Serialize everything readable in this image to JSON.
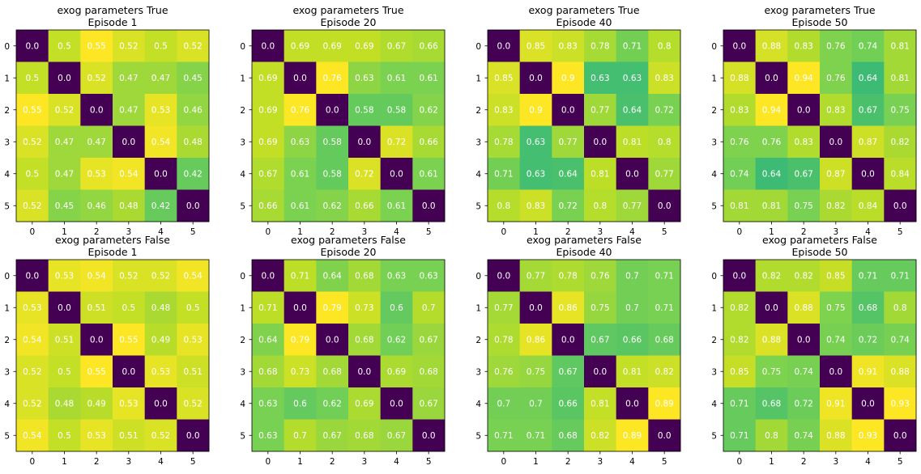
{
  "chart_data": [
    {
      "type": "heatmap",
      "title": "exog parameters True\nEpisode 1",
      "x": [
        "0",
        "1",
        "2",
        "3",
        "4",
        "5"
      ],
      "y": [
        "0",
        "1",
        "2",
        "3",
        "4",
        "5"
      ],
      "values": [
        [
          0.0,
          0.5,
          0.55,
          0.52,
          0.5,
          0.52
        ],
        [
          0.5,
          0.0,
          0.52,
          0.47,
          0.47,
          0.45
        ],
        [
          0.55,
          0.52,
          0.0,
          0.47,
          0.53,
          0.46
        ],
        [
          0.52,
          0.47,
          0.47,
          0.0,
          0.54,
          0.48
        ],
        [
          0.5,
          0.47,
          0.53,
          0.54,
          0.0,
          0.42
        ],
        [
          0.52,
          0.45,
          0.46,
          0.48,
          0.42,
          0.0
        ]
      ],
      "colormap": "viridis"
    },
    {
      "type": "heatmap",
      "title": "exog parameters True\nEpisode 20",
      "x": [
        "0",
        "1",
        "2",
        "3",
        "4",
        "5"
      ],
      "y": [
        "0",
        "1",
        "2",
        "3",
        "4",
        "5"
      ],
      "values": [
        [
          0.0,
          0.69,
          0.69,
          0.69,
          0.67,
          0.66
        ],
        [
          0.69,
          0.0,
          0.76,
          0.63,
          0.61,
          0.61
        ],
        [
          0.69,
          0.76,
          0.0,
          0.58,
          0.58,
          0.62
        ],
        [
          0.69,
          0.63,
          0.58,
          0.0,
          0.72,
          0.66
        ],
        [
          0.67,
          0.61,
          0.58,
          0.72,
          0.0,
          0.61
        ],
        [
          0.66,
          0.61,
          0.62,
          0.66,
          0.61,
          0.0
        ]
      ],
      "colormap": "viridis"
    },
    {
      "type": "heatmap",
      "title": "exog parameters True\nEpisode 40",
      "x": [
        "0",
        "1",
        "2",
        "3",
        "4",
        "5"
      ],
      "y": [
        "0",
        "1",
        "2",
        "3",
        "4",
        "5"
      ],
      "values": [
        [
          0.0,
          0.85,
          0.83,
          0.78,
          0.71,
          0.8
        ],
        [
          0.85,
          0.0,
          0.9,
          0.63,
          0.63,
          0.83
        ],
        [
          0.83,
          0.9,
          0.0,
          0.77,
          0.64,
          0.72
        ],
        [
          0.78,
          0.63,
          0.77,
          0.0,
          0.81,
          0.8
        ],
        [
          0.71,
          0.63,
          0.64,
          0.81,
          0.0,
          0.77
        ],
        [
          0.8,
          0.83,
          0.72,
          0.8,
          0.77,
          0.0
        ]
      ],
      "colormap": "viridis"
    },
    {
      "type": "heatmap",
      "title": "exog parameters True\nEpisode 50",
      "x": [
        "0",
        "1",
        "2",
        "3",
        "4",
        "5"
      ],
      "y": [
        "0",
        "1",
        "2",
        "3",
        "4",
        "5"
      ],
      "values": [
        [
          0.0,
          0.88,
          0.83,
          0.76,
          0.74,
          0.81
        ],
        [
          0.88,
          0.0,
          0.94,
          0.76,
          0.64,
          0.81
        ],
        [
          0.83,
          0.94,
          0.0,
          0.83,
          0.67,
          0.75
        ],
        [
          0.76,
          0.76,
          0.83,
          0.0,
          0.87,
          0.82
        ],
        [
          0.74,
          0.64,
          0.67,
          0.87,
          0.0,
          0.84
        ],
        [
          0.81,
          0.81,
          0.75,
          0.82,
          0.84,
          0.0
        ]
      ],
      "colormap": "viridis"
    },
    {
      "type": "heatmap",
      "title": "exog parameters False\nEpisode 1",
      "x": [
        "0",
        "1",
        "2",
        "3",
        "4",
        "5"
      ],
      "y": [
        "0",
        "1",
        "2",
        "3",
        "4",
        "5"
      ],
      "values": [
        [
          0.0,
          0.53,
          0.54,
          0.52,
          0.52,
          0.54
        ],
        [
          0.53,
          0.0,
          0.51,
          0.5,
          0.48,
          0.5
        ],
        [
          0.54,
          0.51,
          0.0,
          0.55,
          0.49,
          0.53
        ],
        [
          0.52,
          0.5,
          0.55,
          0.0,
          0.53,
          0.51
        ],
        [
          0.52,
          0.48,
          0.49,
          0.53,
          0.0,
          0.52
        ],
        [
          0.54,
          0.5,
          0.53,
          0.51,
          0.52,
          0.0
        ]
      ],
      "colormap": "viridis"
    },
    {
      "type": "heatmap",
      "title": "exog parameters False\nEpisode 20",
      "x": [
        "0",
        "1",
        "2",
        "3",
        "4",
        "5"
      ],
      "y": [
        "0",
        "1",
        "2",
        "3",
        "4",
        "5"
      ],
      "values": [
        [
          0.0,
          0.71,
          0.64,
          0.68,
          0.63,
          0.63
        ],
        [
          0.71,
          0.0,
          0.79,
          0.73,
          0.6,
          0.7
        ],
        [
          0.64,
          0.79,
          0.0,
          0.68,
          0.62,
          0.67
        ],
        [
          0.68,
          0.73,
          0.68,
          0.0,
          0.69,
          0.68
        ],
        [
          0.63,
          0.6,
          0.62,
          0.69,
          0.0,
          0.67
        ],
        [
          0.63,
          0.7,
          0.67,
          0.68,
          0.67,
          0.0
        ]
      ],
      "colormap": "viridis"
    },
    {
      "type": "heatmap",
      "title": "exog parameters False\nEpisode 40",
      "x": [
        "0",
        "1",
        "2",
        "3",
        "4",
        "5"
      ],
      "y": [
        "0",
        "1",
        "2",
        "3",
        "4",
        "5"
      ],
      "values": [
        [
          0.0,
          0.77,
          0.78,
          0.76,
          0.7,
          0.71
        ],
        [
          0.77,
          0.0,
          0.86,
          0.75,
          0.7,
          0.71
        ],
        [
          0.78,
          0.86,
          0.0,
          0.67,
          0.66,
          0.68
        ],
        [
          0.76,
          0.75,
          0.67,
          0.0,
          0.81,
          0.82
        ],
        [
          0.7,
          0.7,
          0.66,
          0.81,
          0.0,
          0.89
        ],
        [
          0.71,
          0.71,
          0.68,
          0.82,
          0.89,
          0.0
        ]
      ],
      "colormap": "viridis"
    },
    {
      "type": "heatmap",
      "title": "exog parameters False\nEpisode 50",
      "x": [
        "0",
        "1",
        "2",
        "3",
        "4",
        "5"
      ],
      "y": [
        "0",
        "1",
        "2",
        "3",
        "4",
        "5"
      ],
      "values": [
        [
          0.0,
          0.82,
          0.82,
          0.85,
          0.71,
          0.71
        ],
        [
          0.82,
          0.0,
          0.88,
          0.75,
          0.68,
          0.8
        ],
        [
          0.82,
          0.88,
          0.0,
          0.74,
          0.72,
          0.74
        ],
        [
          0.85,
          0.75,
          0.74,
          0.0,
          0.91,
          0.88
        ],
        [
          0.71,
          0.68,
          0.72,
          0.91,
          0.0,
          0.93
        ],
        [
          0.71,
          0.8,
          0.74,
          0.88,
          0.93,
          0.0
        ]
      ],
      "colormap": "viridis"
    }
  ]
}
